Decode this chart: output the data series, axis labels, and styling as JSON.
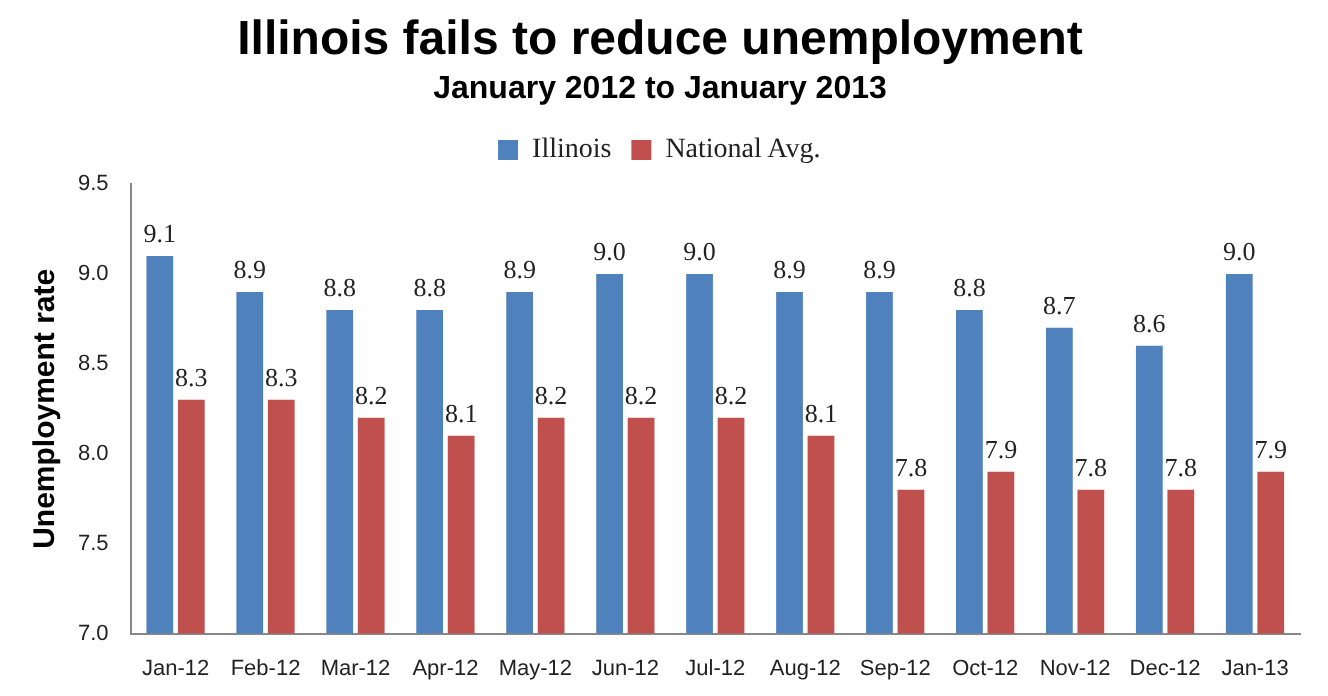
{
  "chart_data": {
    "type": "bar",
    "title": "Illinois fails to reduce unemployment",
    "subtitle": "January 2012 to January 2013",
    "ylabel": "Unemployment rate",
    "categories": [
      "Jan-12",
      "Feb-12",
      "Mar-12",
      "Apr-12",
      "May-12",
      "Jun-12",
      "Jul-12",
      "Aug-12",
      "Sep-12",
      "Oct-12",
      "Nov-12",
      "Dec-12",
      "Jan-13"
    ],
    "series": [
      {
        "name": "Illinois",
        "color": "#4f81bd",
        "values": [
          9.1,
          8.9,
          8.8,
          8.8,
          8.9,
          9.0,
          9.0,
          8.9,
          8.9,
          8.8,
          8.7,
          8.6,
          9.0
        ],
        "value_labels": [
          "9.1",
          "8.9",
          "8.8",
          "8.8",
          "8.9",
          "9.0",
          "9.0",
          "8.9",
          "8.9",
          "8.8",
          "8.7",
          "8.6",
          "9.0"
        ]
      },
      {
        "name": "National Avg.",
        "color": "#c0504d",
        "values": [
          8.3,
          8.3,
          8.2,
          8.1,
          8.2,
          8.2,
          8.2,
          8.1,
          7.8,
          7.9,
          7.8,
          7.8,
          7.9
        ],
        "value_labels": [
          "8.3",
          "8.3",
          "8.2",
          "8.1",
          "8.2",
          "8.2",
          "8.2",
          "8.1",
          "7.8",
          "7.9",
          "7.8",
          "7.8",
          "7.9"
        ]
      }
    ],
    "ylim": [
      7.0,
      9.5
    ],
    "yticks": [
      {
        "value": 7.0,
        "label": "7.0"
      },
      {
        "value": 7.5,
        "label": "7.5"
      },
      {
        "value": 8.0,
        "label": "8.0"
      },
      {
        "value": 8.5,
        "label": "8.5"
      },
      {
        "value": 9.0,
        "label": "9.0"
      },
      {
        "value": 9.5,
        "label": "9.5"
      }
    ],
    "grid": false,
    "legend": "top"
  }
}
